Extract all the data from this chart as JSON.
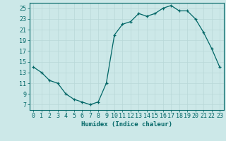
{
  "x": [
    0,
    1,
    2,
    3,
    4,
    5,
    6,
    7,
    8,
    9,
    10,
    11,
    12,
    13,
    14,
    15,
    16,
    17,
    18,
    19,
    20,
    21,
    22,
    23
  ],
  "y": [
    14,
    13,
    11.5,
    11,
    9,
    8,
    7.5,
    7,
    7.5,
    11,
    20,
    22,
    22.5,
    24,
    23.5,
    24,
    25,
    25.5,
    24.5,
    24.5,
    23,
    20.5,
    17.5,
    14
  ],
  "xlabel": "Humidex (Indice chaleur)",
  "xlim": [
    -0.5,
    23.5
  ],
  "ylim": [
    6,
    26
  ],
  "yticks": [
    7,
    9,
    11,
    13,
    15,
    17,
    19,
    21,
    23,
    25
  ],
  "xticks": [
    0,
    1,
    2,
    3,
    4,
    5,
    6,
    7,
    8,
    9,
    10,
    11,
    12,
    13,
    14,
    15,
    16,
    17,
    18,
    19,
    20,
    21,
    22,
    23
  ],
  "line_color": "#006666",
  "marker": "+",
  "bg_color": "#cce8e8",
  "grid_color": "#b8d8d8",
  "axis_fontsize": 6.5,
  "tick_fontsize": 6.0
}
